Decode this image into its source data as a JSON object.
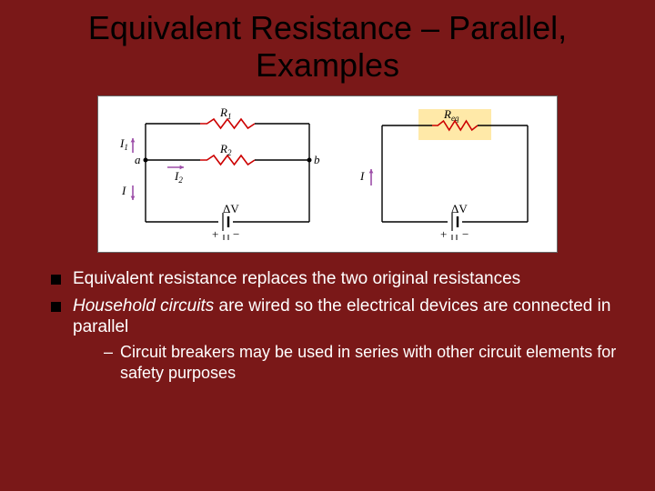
{
  "title": "Equivalent Resistance – Parallel, Examples",
  "bullets": {
    "b1": "Equivalent resistance replaces the two original resistances",
    "b2_italic": "Household circuits",
    "b2_rest": " are wired so the electrical devices are connected in parallel",
    "sub1": "Circuit breakers may be used in series with other circuit elements for safety purposes"
  },
  "diagram": {
    "bg": "#ffffff",
    "wire_color": "#000000",
    "resistor_color": "#cc0000",
    "arrow_color": "#9d4ea8",
    "highlight_fill": "#ffe9a8",
    "labels": {
      "R1": "R",
      "R1sub": "1",
      "R2": "R",
      "R2sub": "2",
      "Req": "R",
      "Reqsub": "eq",
      "I1": "I",
      "I1sub": "1",
      "I": "I",
      "I2": "I",
      "I2sub": "2",
      "a": "a",
      "b": "b",
      "dV": "ΔV",
      "plus": "+",
      "minus": "−"
    },
    "font_family": "Times New Roman, serif",
    "label_fontsize": 13,
    "sub_fontsize": 9
  }
}
